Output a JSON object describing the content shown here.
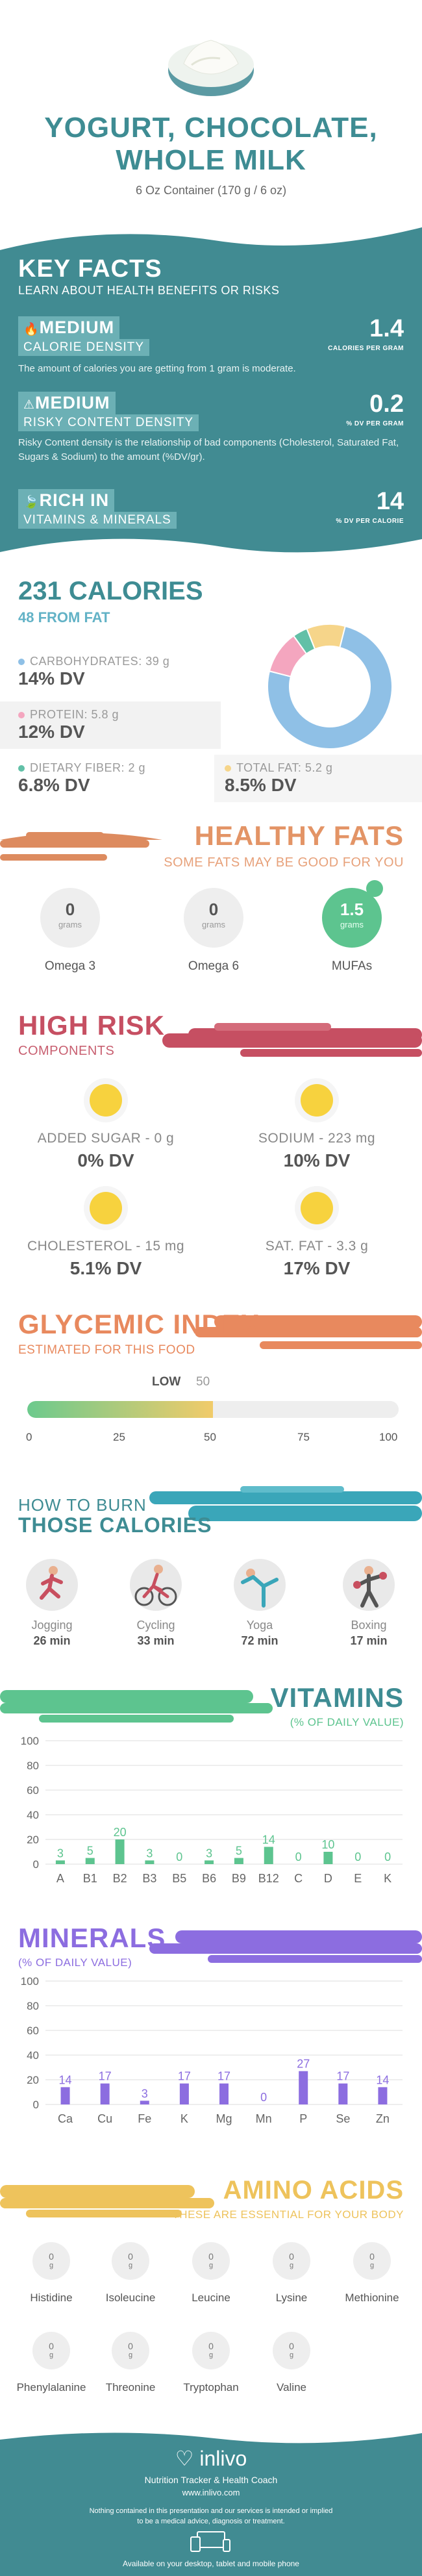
{
  "header": {
    "title_line1": "YOGURT, CHOCOLATE,",
    "title_line2": "WHOLE MILK",
    "serving": "6 Oz Container (170 g / 6 oz)"
  },
  "key_facts": {
    "title": "KEY FACTS",
    "subtitle": "LEARN ABOUT HEALTH BENEFITS OR RISKS",
    "items": [
      {
        "level": "MEDIUM",
        "label": "CALORIE DENSITY",
        "value": "1.4",
        "unit": "CALORIES PER GRAM",
        "note": "The amount of calories you are getting from 1 gram is moderate.",
        "icon": "flame-icon"
      },
      {
        "level": "MEDIUM",
        "label": "RISKY CONTENT DENSITY",
        "value": "0.2",
        "unit": "% DV PER GRAM",
        "note": "Risky Content density is the relationship of bad components (Cholesterol, Saturated Fat, Sugars & Sodium) to the amount (%DV/gr).",
        "icon": "warning-icon"
      },
      {
        "level": "RICH  IN",
        "label": "VITAMINS & MINERALS",
        "value": "14",
        "unit": "% DV PER CALORIE",
        "note": "",
        "icon": "leaf-icon"
      }
    ]
  },
  "calories": {
    "title": "231 CALORIES",
    "from_fat": "48 FROM FAT",
    "carbs_label": "CARBOHYDRATES: 39 g",
    "carbs_dv": "14% DV",
    "protein_label": "PROTEIN: 5.8 g",
    "protein_dv": "12% DV",
    "fiber_label": "DIETARY FIBER: 2 g",
    "fiber_dv": "6.8% DV",
    "fat_label": "TOTAL FAT: 5.2 g",
    "fat_dv": "8.5% DV",
    "colors": {
      "carbs": "#8fc0e6",
      "protein": "#f4a6bf",
      "fiber": "#62c0a7",
      "fat": "#f6d58a"
    }
  },
  "chart_data": [
    {
      "type": "pie",
      "variant": "donut",
      "categories": [
        "Carbohydrates",
        "Protein",
        "Dietary Fiber",
        "Total Fat"
      ],
      "values": [
        39,
        5.8,
        2,
        5.2
      ]
    },
    {
      "type": "bar",
      "title": "VITAMINS",
      "subtitle": "(% OF DAILY VALUE)",
      "categories": [
        "A",
        "B1",
        "B2",
        "B3",
        "B5",
        "B6",
        "B9",
        "B12",
        "C",
        "D",
        "E",
        "K"
      ],
      "values": [
        3,
        5,
        20,
        3,
        0,
        3,
        5,
        14,
        0,
        10,
        0,
        0
      ],
      "ylim": [
        0,
        100
      ],
      "yticks": [
        0,
        20,
        40,
        60,
        80,
        100
      ],
      "color": "#5dc48f"
    },
    {
      "type": "bar",
      "title": "MINERALS",
      "subtitle": "(% OF DAILY VALUE)",
      "categories": [
        "Ca",
        "Cu",
        "Fe",
        "K",
        "Mg",
        "Mn",
        "P",
        "Se",
        "Zn"
      ],
      "values": [
        14,
        17,
        3,
        17,
        17,
        0,
        27,
        17,
        14
      ],
      "ylim": [
        0,
        100
      ],
      "yticks": [
        0,
        20,
        40,
        60,
        80,
        100
      ],
      "color": "#8c6de0"
    }
  ],
  "healthy_fats": {
    "title": "HEALTHY FATS",
    "subtitle": "SOME FATS MAY BE GOOD FOR YOU",
    "items": [
      {
        "value": "0",
        "unit": "grams",
        "label": "Omega 3"
      },
      {
        "value": "0",
        "unit": "grams",
        "label": "Omega 6"
      },
      {
        "value": "1.5",
        "unit": "grams",
        "label": "MUFAs"
      }
    ]
  },
  "high_risk": {
    "title": "HIGH RISK",
    "subtitle": "COMPONENTS",
    "items": [
      {
        "label": "ADDED SUGAR - 0 g",
        "dv": "0% DV"
      },
      {
        "label": "SODIUM - 223 mg",
        "dv": "10% DV"
      },
      {
        "label": "CHOLESTEROL - 15 mg",
        "dv": "5.1% DV"
      },
      {
        "label": "SAT. FAT - 3.3 g",
        "dv": "17% DV"
      }
    ]
  },
  "glycemic": {
    "title": "GLYCEMIC INDEX",
    "subtitle": "ESTIMATED FOR THIS FOOD",
    "level": "LOW",
    "value": 50,
    "value_text": "50",
    "max": 100,
    "ticks": [
      "0",
      "25",
      "50",
      "75",
      "100"
    ]
  },
  "burn": {
    "title_line1": "HOW TO BURN",
    "title_line2": "THOSE CALORIES",
    "items": [
      {
        "label": "Jogging",
        "min": "26 min"
      },
      {
        "label": "Cycling",
        "min": "33 min"
      },
      {
        "label": "Yoga",
        "min": "72 min"
      },
      {
        "label": "Boxing",
        "min": "17 min"
      }
    ]
  },
  "vitamins_title": "VITAMINS",
  "vitamins_subtitle": "(% OF DAILY VALUE)",
  "minerals_title": "MINERALS",
  "minerals_subtitle": "(% OF DAILY VALUE)",
  "amino": {
    "title": "AMINO ACIDS",
    "subtitle": "THESE ARE ESSENTIAL FOR YOUR BODY",
    "unit": "g",
    "items": [
      "Histidine",
      "Isoleucine",
      "Leucine",
      "Lysine",
      "Methionine",
      "Phenylalanine",
      "Threonine",
      "Tryptophan",
      "Valine"
    ],
    "values": [
      "0",
      "0",
      "0",
      "0",
      "0",
      "0",
      "0",
      "0",
      "0"
    ]
  },
  "footer": {
    "brand": "inlivo",
    "tagline": "Nutrition Tracker & Health Coach",
    "site": "www.inlivo.com",
    "disclaimer1": "Nothing contained in this presentation and our services is intended or implied",
    "disclaimer2": "to be a medical advice, diagnosis or treatment.",
    "available": "Available on your desktop, tablet and mobile phone"
  }
}
